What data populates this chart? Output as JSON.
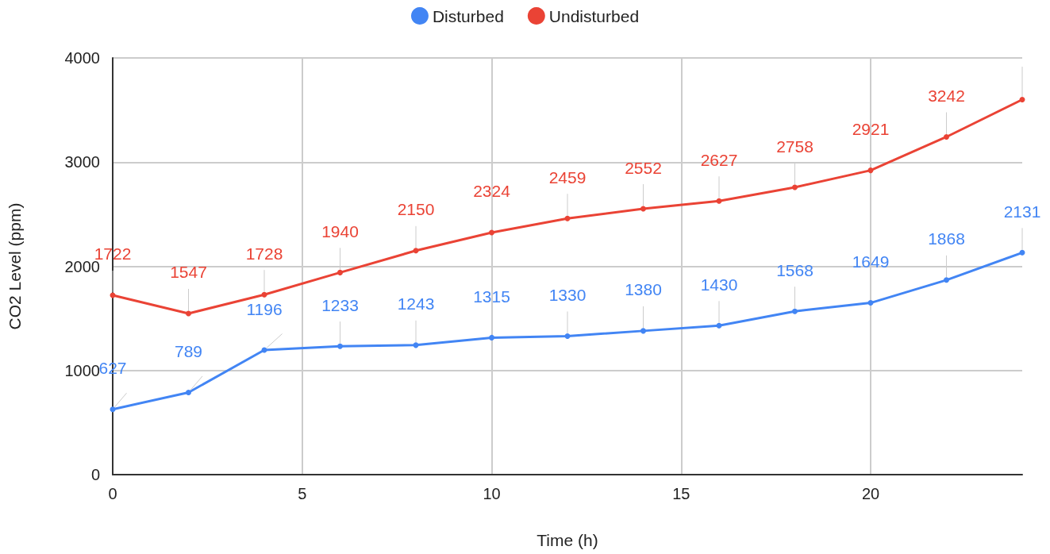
{
  "chart_data": {
    "type": "line",
    "xlabel": "Time (h)",
    "ylabel": "CO2 Level (ppm)",
    "x": [
      0,
      2,
      4,
      6,
      8,
      10,
      12,
      14,
      16,
      18,
      20,
      22,
      24
    ],
    "series": [
      {
        "name": "Disturbed",
        "color": "#4285f4",
        "values": [
          627,
          789,
          1196,
          1233,
          1243,
          1315,
          1330,
          1380,
          1430,
          1568,
          1649,
          1868,
          2131
        ],
        "value_labels": [
          "627",
          "789",
          "1196",
          "1233",
          "1243",
          "1315",
          "1330",
          "1380",
          "1430",
          "1568",
          "1649",
          "1868",
          "2131"
        ]
      },
      {
        "name": "Undisturbed",
        "color": "#ea4335",
        "values": [
          1722,
          1547,
          1728,
          1940,
          2150,
          2324,
          2459,
          2552,
          2627,
          2758,
          2921,
          3242,
          3600
        ],
        "value_labels": [
          "1722",
          "1547",
          "1728",
          "1940",
          "2150",
          "2324",
          "2459",
          "2552",
          "2627",
          "2758",
          "2921",
          "3242",
          null
        ]
      }
    ],
    "xlim": [
      0,
      24
    ],
    "xticks": [
      0,
      5,
      10,
      15,
      20
    ],
    "ylim": [
      0,
      4000
    ],
    "yticks": [
      0,
      1000,
      2000,
      3000,
      4000
    ],
    "grid": true,
    "legend": "top",
    "marker": "circle",
    "line_style": "solid"
  }
}
